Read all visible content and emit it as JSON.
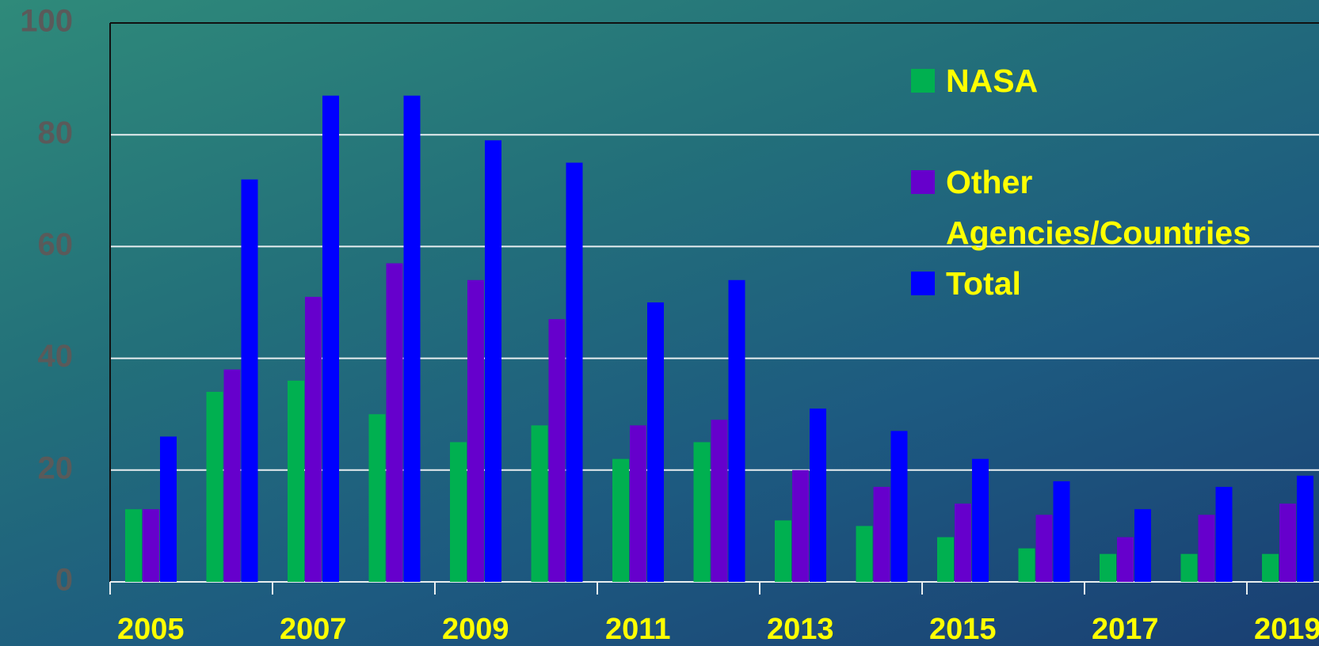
{
  "chart_data": {
    "type": "bar",
    "categories": [
      "2005",
      null,
      "2007",
      null,
      "2009",
      null,
      "2011",
      null,
      "2013",
      null,
      "2015",
      null,
      "2017",
      null,
      "2019"
    ],
    "series": [
      {
        "name": "NASA",
        "color": "#00b050",
        "values": [
          13,
          34,
          36,
          30,
          25,
          28,
          22,
          25,
          11,
          10,
          8,
          6,
          5,
          5,
          5
        ]
      },
      {
        "name": "Other Agencies/Countries",
        "color": "#6600cc",
        "values": [
          13,
          38,
          51,
          57,
          54,
          47,
          28,
          29,
          20,
          17,
          14,
          12,
          8,
          12,
          14
        ]
      },
      {
        "name": "Total",
        "color": "#0000ff",
        "values": [
          26,
          72,
          87,
          87,
          79,
          75,
          50,
          54,
          31,
          27,
          22,
          18,
          13,
          17,
          19
        ]
      }
    ],
    "ylim": [
      0,
      100
    ],
    "yticks": [
      0,
      20,
      40,
      60,
      80,
      100
    ],
    "grid": true
  }
}
